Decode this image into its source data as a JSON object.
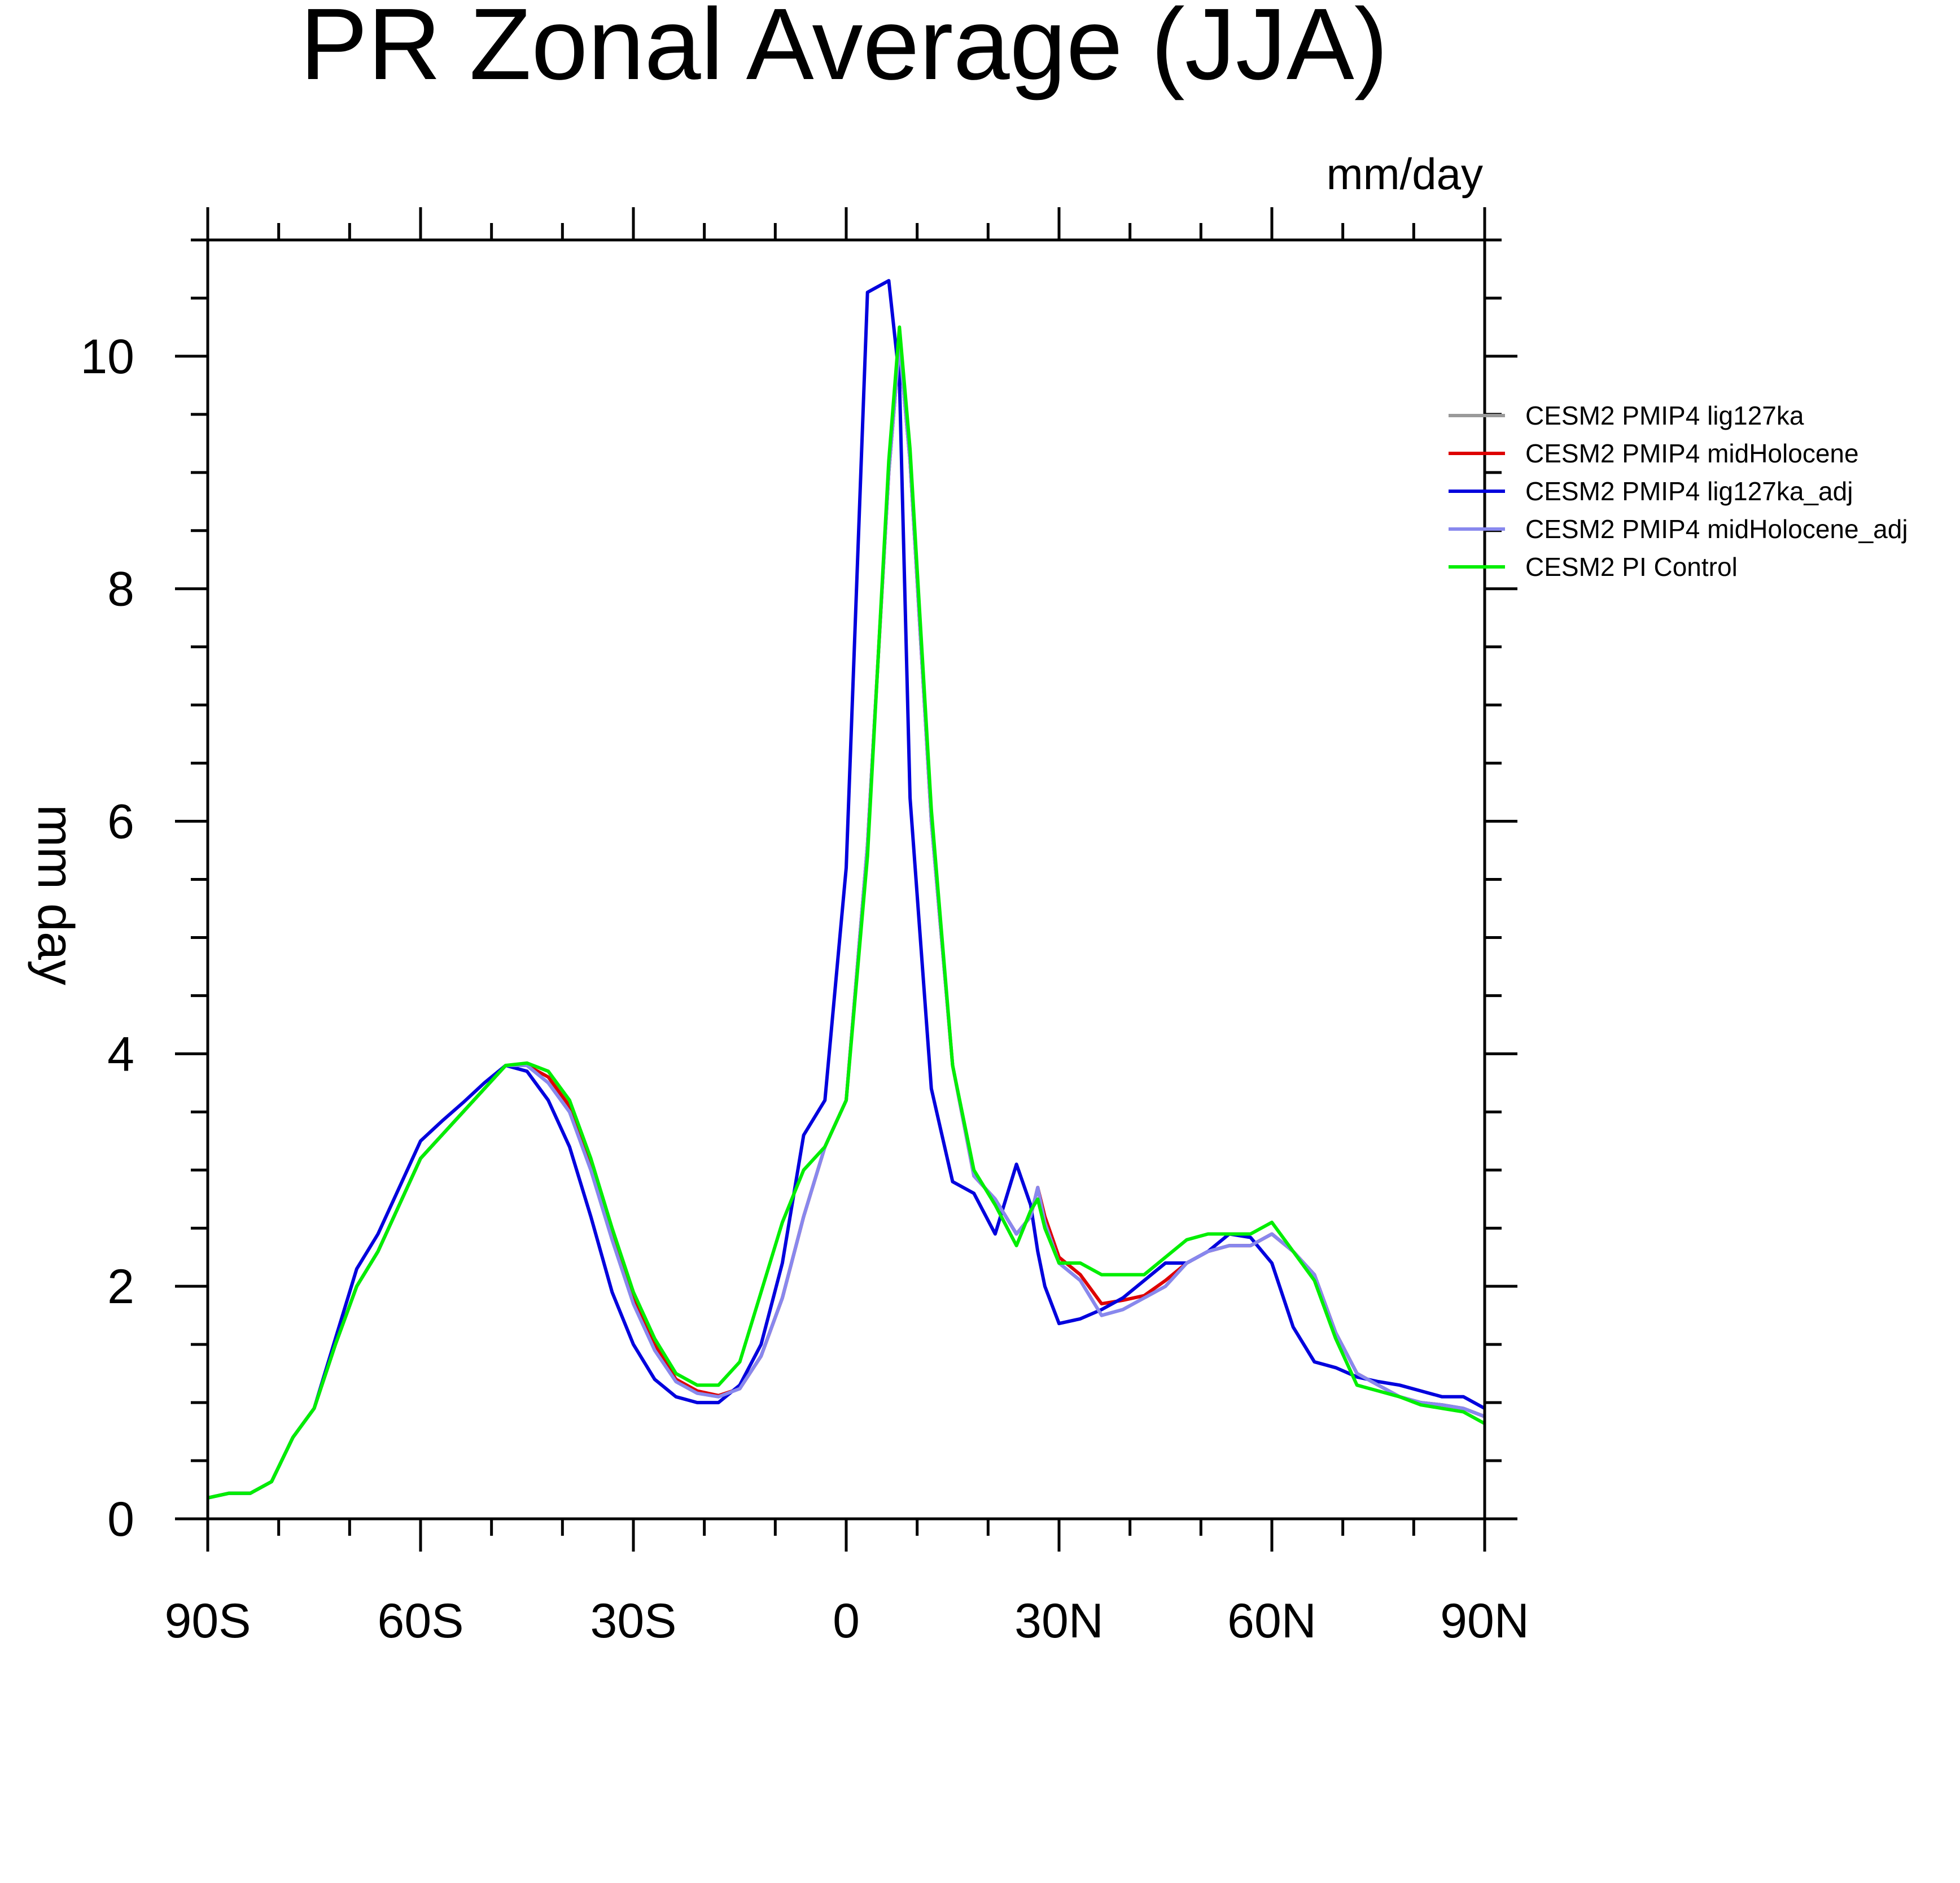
{
  "chart_data": {
    "type": "line",
    "title": "PR Zonal Average (JJA)",
    "units": "mm/day",
    "ylabel": "mm day",
    "xlabel": "",
    "xlim": [
      -90,
      90
    ],
    "ylim": [
      0,
      11
    ],
    "grid": false,
    "legend_position": "right",
    "x_ticks": [
      {
        "value": -90,
        "label": "90S"
      },
      {
        "value": -60,
        "label": "60S"
      },
      {
        "value": -30,
        "label": "30S"
      },
      {
        "value": 0,
        "label": "0"
      },
      {
        "value": 30,
        "label": "30N"
      },
      {
        "value": 60,
        "label": "60N"
      },
      {
        "value": 90,
        "label": "90N"
      }
    ],
    "y_ticks": [
      {
        "value": 0,
        "label": "0"
      },
      {
        "value": 2,
        "label": "2"
      },
      {
        "value": 4,
        "label": "4"
      },
      {
        "value": 6,
        "label": "6"
      },
      {
        "value": 8,
        "label": "8"
      },
      {
        "value": 10,
        "label": "10"
      }
    ],
    "x": [
      -90,
      -87,
      -84,
      -81,
      -78,
      -75,
      -72,
      -69,
      -66,
      -63,
      -60,
      -57,
      -54,
      -51,
      -48,
      -45,
      -42,
      -39,
      -36,
      -33,
      -30,
      -27,
      -24,
      -21,
      -18,
      -15,
      -12,
      -9,
      -6,
      -3,
      0,
      3,
      6,
      7.5,
      9,
      12,
      15,
      18,
      21,
      24,
      26,
      27,
      28,
      30,
      33,
      36,
      39,
      42,
      45,
      48,
      51,
      54,
      57,
      60,
      63,
      66,
      69,
      72,
      75,
      78,
      81,
      84,
      87,
      90
    ],
    "series": [
      {
        "name": "CESM2 PMIP4 lig127ka",
        "color": "#9a9a9a",
        "values": [
          0.18,
          0.22,
          0.22,
          0.32,
          0.7,
          0.95,
          1.5,
          2.0,
          2.3,
          2.7,
          3.1,
          3.3,
          3.5,
          3.7,
          3.9,
          3.9,
          3.75,
          3.5,
          3.0,
          2.4,
          1.85,
          1.45,
          1.18,
          1.08,
          1.05,
          1.12,
          1.4,
          1.9,
          2.6,
          3.2,
          3.6,
          5.8,
          9.0,
          10.1,
          9.1,
          6.0,
          3.9,
          2.95,
          2.75,
          2.45,
          2.6,
          2.85,
          2.55,
          2.2,
          2.05,
          1.75,
          1.8,
          1.9,
          2.0,
          2.2,
          2.3,
          2.35,
          2.35,
          2.45,
          2.3,
          2.1,
          1.6,
          1.25,
          1.15,
          1.05,
          1.0,
          0.98,
          0.95,
          0.88
        ]
      },
      {
        "name": "CESM2 PMIP4 midHolocene",
        "color": "#dd0000",
        "values": [
          0.18,
          0.22,
          0.22,
          0.32,
          0.7,
          0.95,
          1.5,
          2.0,
          2.3,
          2.7,
          3.1,
          3.3,
          3.5,
          3.7,
          3.9,
          3.9,
          3.8,
          3.55,
          3.05,
          2.45,
          1.9,
          1.5,
          1.2,
          1.1,
          1.06,
          1.12,
          1.4,
          1.9,
          2.6,
          3.2,
          3.6,
          5.8,
          9.0,
          10.1,
          9.1,
          6.0,
          3.9,
          2.95,
          2.75,
          2.45,
          2.6,
          2.85,
          2.6,
          2.25,
          2.1,
          1.85,
          1.88,
          1.92,
          2.05,
          2.2,
          2.3,
          2.35,
          2.35,
          2.45,
          2.3,
          2.1,
          1.6,
          1.25,
          1.15,
          1.05,
          1.0,
          0.98,
          0.95,
          0.88
        ]
      },
      {
        "name": "CESM2 PMIP4 lig127ka_adj",
        "color": "#0000dd",
        "values": [
          0.18,
          0.22,
          0.22,
          0.32,
          0.7,
          0.95,
          1.55,
          2.15,
          2.45,
          2.85,
          3.25,
          3.42,
          3.58,
          3.75,
          3.9,
          3.85,
          3.6,
          3.2,
          2.6,
          1.95,
          1.5,
          1.2,
          1.05,
          1.0,
          1.0,
          1.15,
          1.5,
          2.2,
          3.3,
          3.6,
          5.6,
          10.55,
          10.65,
          9.8,
          6.2,
          3.7,
          2.9,
          2.8,
          2.45,
          3.05,
          2.7,
          2.3,
          2.0,
          1.68,
          1.72,
          1.8,
          1.9,
          2.05,
          2.2,
          2.2,
          2.3,
          2.45,
          2.42,
          2.2,
          1.65,
          1.35,
          1.3,
          1.22,
          1.18,
          1.15,
          1.1,
          1.05,
          1.05,
          0.95
        ]
      },
      {
        "name": "CESM2 PMIP4 midHolocene_adj",
        "color": "#8888ee",
        "values": [
          0.18,
          0.22,
          0.22,
          0.32,
          0.7,
          0.95,
          1.5,
          2.0,
          2.3,
          2.7,
          3.1,
          3.3,
          3.5,
          3.7,
          3.9,
          3.9,
          3.75,
          3.5,
          3.0,
          2.4,
          1.85,
          1.45,
          1.18,
          1.08,
          1.05,
          1.12,
          1.4,
          1.9,
          2.6,
          3.2,
          3.6,
          5.8,
          9.0,
          10.1,
          9.1,
          6.0,
          3.9,
          2.95,
          2.75,
          2.45,
          2.6,
          2.85,
          2.55,
          2.2,
          2.05,
          1.75,
          1.8,
          1.9,
          2.0,
          2.2,
          2.3,
          2.35,
          2.35,
          2.45,
          2.3,
          2.1,
          1.6,
          1.25,
          1.15,
          1.05,
          1.0,
          0.98,
          0.95,
          0.88
        ]
      },
      {
        "name": "CESM2 PI Control",
        "color": "#00ee00",
        "values": [
          0.18,
          0.22,
          0.22,
          0.32,
          0.7,
          0.95,
          1.5,
          2.0,
          2.3,
          2.7,
          3.1,
          3.3,
          3.5,
          3.7,
          3.9,
          3.92,
          3.85,
          3.6,
          3.1,
          2.5,
          1.95,
          1.55,
          1.25,
          1.15,
          1.15,
          1.35,
          1.95,
          2.55,
          3.0,
          3.2,
          3.6,
          5.7,
          9.1,
          10.25,
          9.2,
          6.1,
          3.9,
          3.0,
          2.7,
          2.35,
          2.65,
          2.75,
          2.5,
          2.2,
          2.2,
          2.1,
          2.1,
          2.1,
          2.25,
          2.4,
          2.45,
          2.45,
          2.45,
          2.55,
          2.3,
          2.05,
          1.55,
          1.15,
          1.1,
          1.05,
          0.98,
          0.95,
          0.92,
          0.82
        ]
      }
    ]
  }
}
